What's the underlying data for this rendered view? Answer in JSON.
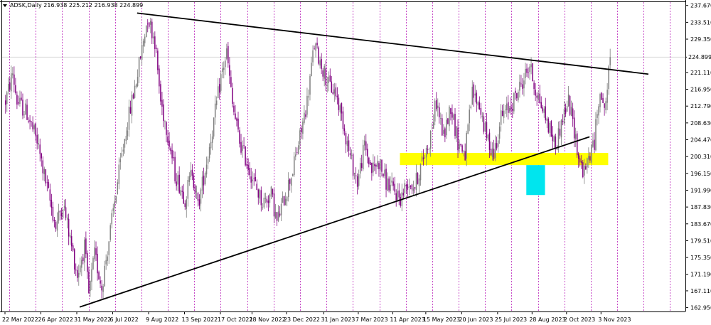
{
  "header": {
    "symbol_line": "ADSK,Daily  216.938 225.212 216.938 224.899"
  },
  "current_price_label": "224.899",
  "colors": {
    "bull": "#7f7f7f",
    "bear": "#800080",
    "vgrid": "#b000b0",
    "hgrid": "#d8d8d8",
    "trendline": "#000000",
    "support_zone": "#ffff00",
    "reversal_zone": "#00e5ee"
  },
  "chart_data": {
    "type": "candlestick",
    "title": "ADSK,Daily",
    "ohlc_readout": {
      "open": 216.938,
      "high": 225.212,
      "low": 216.938,
      "close": 224.899
    },
    "y_ticks": [
      "237.670",
      "233.510",
      "229.350",
      "224.899",
      "221.110",
      "216.950",
      "212.790",
      "208.630",
      "204.470",
      "200.310",
      "196.150",
      "191.990",
      "187.830",
      "183.670",
      "179.510",
      "175.350",
      "171.190",
      "167.110",
      "162.950"
    ],
    "y_tick_values": [
      237.67,
      233.51,
      229.35,
      224.899,
      221.11,
      216.95,
      212.79,
      208.63,
      204.47,
      200.31,
      196.15,
      191.99,
      187.83,
      183.67,
      179.51,
      175.35,
      171.19,
      167.11,
      162.95
    ],
    "ylim": [
      162.0,
      238.5
    ],
    "x_ticks": [
      "22 Mar 2022",
      "26 Apr 2022",
      "31 May 2022",
      "6 Jul 2022",
      "9 Aug 2022",
      "13 Sep 2022",
      "17 Oct 2022",
      "18 Nov 2022",
      "23 Dec 2022",
      "31 Jan 2023",
      "7 Mar 2023",
      "11 Apr 2023",
      "15 May 2023",
      "20 Jun 2023",
      "25 Jul 2023",
      "28 Aug 2023",
      "2 Oct 2023",
      "3 Nov 2023"
    ],
    "x_tick_bar_index": [
      0,
      25,
      50,
      75,
      100,
      125,
      150,
      172,
      196,
      222,
      246,
      270,
      293,
      318,
      343,
      367,
      391,
      415
    ],
    "bar_count": 434,
    "grid": "vertical dotted",
    "path_anchors": [
      [
        0,
        214
      ],
      [
        5,
        221
      ],
      [
        8,
        214
      ],
      [
        15,
        211
      ],
      [
        22,
        204
      ],
      [
        28,
        194
      ],
      [
        35,
        183
      ],
      [
        40,
        189
      ],
      [
        46,
        178
      ],
      [
        50,
        171
      ],
      [
        55,
        178
      ],
      [
        58,
        166
      ],
      [
        62,
        176
      ],
      [
        67,
        168
      ],
      [
        73,
        182
      ],
      [
        78,
        194
      ],
      [
        84,
        207
      ],
      [
        92,
        221
      ],
      [
        99,
        235
      ],
      [
        104,
        229
      ],
      [
        108,
        214
      ],
      [
        113,
        206
      ],
      [
        118,
        196
      ],
      [
        125,
        190
      ],
      [
        130,
        197
      ],
      [
        134,
        188
      ],
      [
        140,
        199
      ],
      [
        145,
        209
      ],
      [
        150,
        220
      ],
      [
        154,
        226
      ],
      [
        158,
        213
      ],
      [
        163,
        204
      ],
      [
        169,
        198
      ],
      [
        174,
        193
      ],
      [
        179,
        189
      ],
      [
        185,
        191
      ],
      [
        189,
        184
      ],
      [
        194,
        190
      ],
      [
        200,
        197
      ],
      [
        205,
        205
      ],
      [
        210,
        214
      ],
      [
        215,
        228
      ],
      [
        220,
        223
      ],
      [
        225,
        218
      ],
      [
        230,
        216
      ],
      [
        235,
        209
      ],
      [
        240,
        200
      ],
      [
        245,
        194
      ],
      [
        250,
        203
      ],
      [
        255,
        197
      ],
      [
        260,
        199
      ],
      [
        265,
        194
      ],
      [
        270,
        192
      ],
      [
        275,
        190
      ],
      [
        280,
        194
      ],
      [
        285,
        193
      ],
      [
        290,
        199
      ],
      [
        295,
        204
      ],
      [
        300,
        214
      ],
      [
        305,
        205
      ],
      [
        310,
        213
      ],
      [
        315,
        204
      ],
      [
        320,
        201
      ],
      [
        325,
        216
      ],
      [
        330,
        213
      ],
      [
        335,
        205
      ],
      [
        340,
        201
      ],
      [
        345,
        210
      ],
      [
        350,
        212
      ],
      [
        355,
        215
      ],
      [
        360,
        219
      ],
      [
        365,
        223
      ],
      [
        368,
        218
      ],
      [
        373,
        213
      ],
      [
        378,
        208
      ],
      [
        383,
        203
      ],
      [
        388,
        210
      ],
      [
        392,
        214
      ],
      [
        396,
        207
      ],
      [
        399,
        200
      ],
      [
        403,
        196
      ],
      [
        406,
        200
      ],
      [
        410,
        204
      ],
      [
        414,
        218
      ],
      [
        416,
        212
      ],
      [
        418,
        214
      ],
      [
        421,
        224
      ]
    ],
    "trendlines": [
      {
        "name": "resistance",
        "from": [
          92,
          235.8
        ],
        "to": [
          448,
          220.7
        ]
      },
      {
        "name": "support",
        "from": [
          52,
          163.1
        ],
        "to": [
          407,
          205.2
        ]
      }
    ],
    "zones": [
      {
        "name": "support-zone",
        "bar_from": 275,
        "bar_to": 420,
        "price_low": 198.2,
        "price_high": 201.2
      },
      {
        "name": "reversal-zone",
        "bar_from": 363,
        "bar_to": 376,
        "price_low": 190.8,
        "price_high": 198.2
      }
    ]
  }
}
